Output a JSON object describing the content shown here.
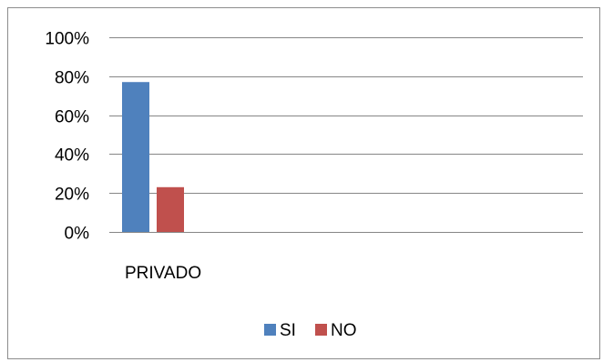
{
  "chart_data": {
    "type": "bar",
    "categories": [
      "PRIVADO"
    ],
    "series": [
      {
        "name": "SI",
        "values": [
          0.77
        ],
        "color": "#4F81BD"
      },
      {
        "name": "NO",
        "values": [
          0.23
        ],
        "color": "#C0504D"
      }
    ],
    "ylim": [
      0,
      1
    ],
    "y_ticks": [
      0,
      0.2,
      0.4,
      0.6,
      0.8,
      1.0
    ],
    "y_tick_labels": [
      "0%",
      "20%",
      "40%",
      "60%",
      "80%",
      "100%"
    ],
    "grid": true,
    "legend_position": "bottom",
    "gridline_color": "#868686"
  }
}
